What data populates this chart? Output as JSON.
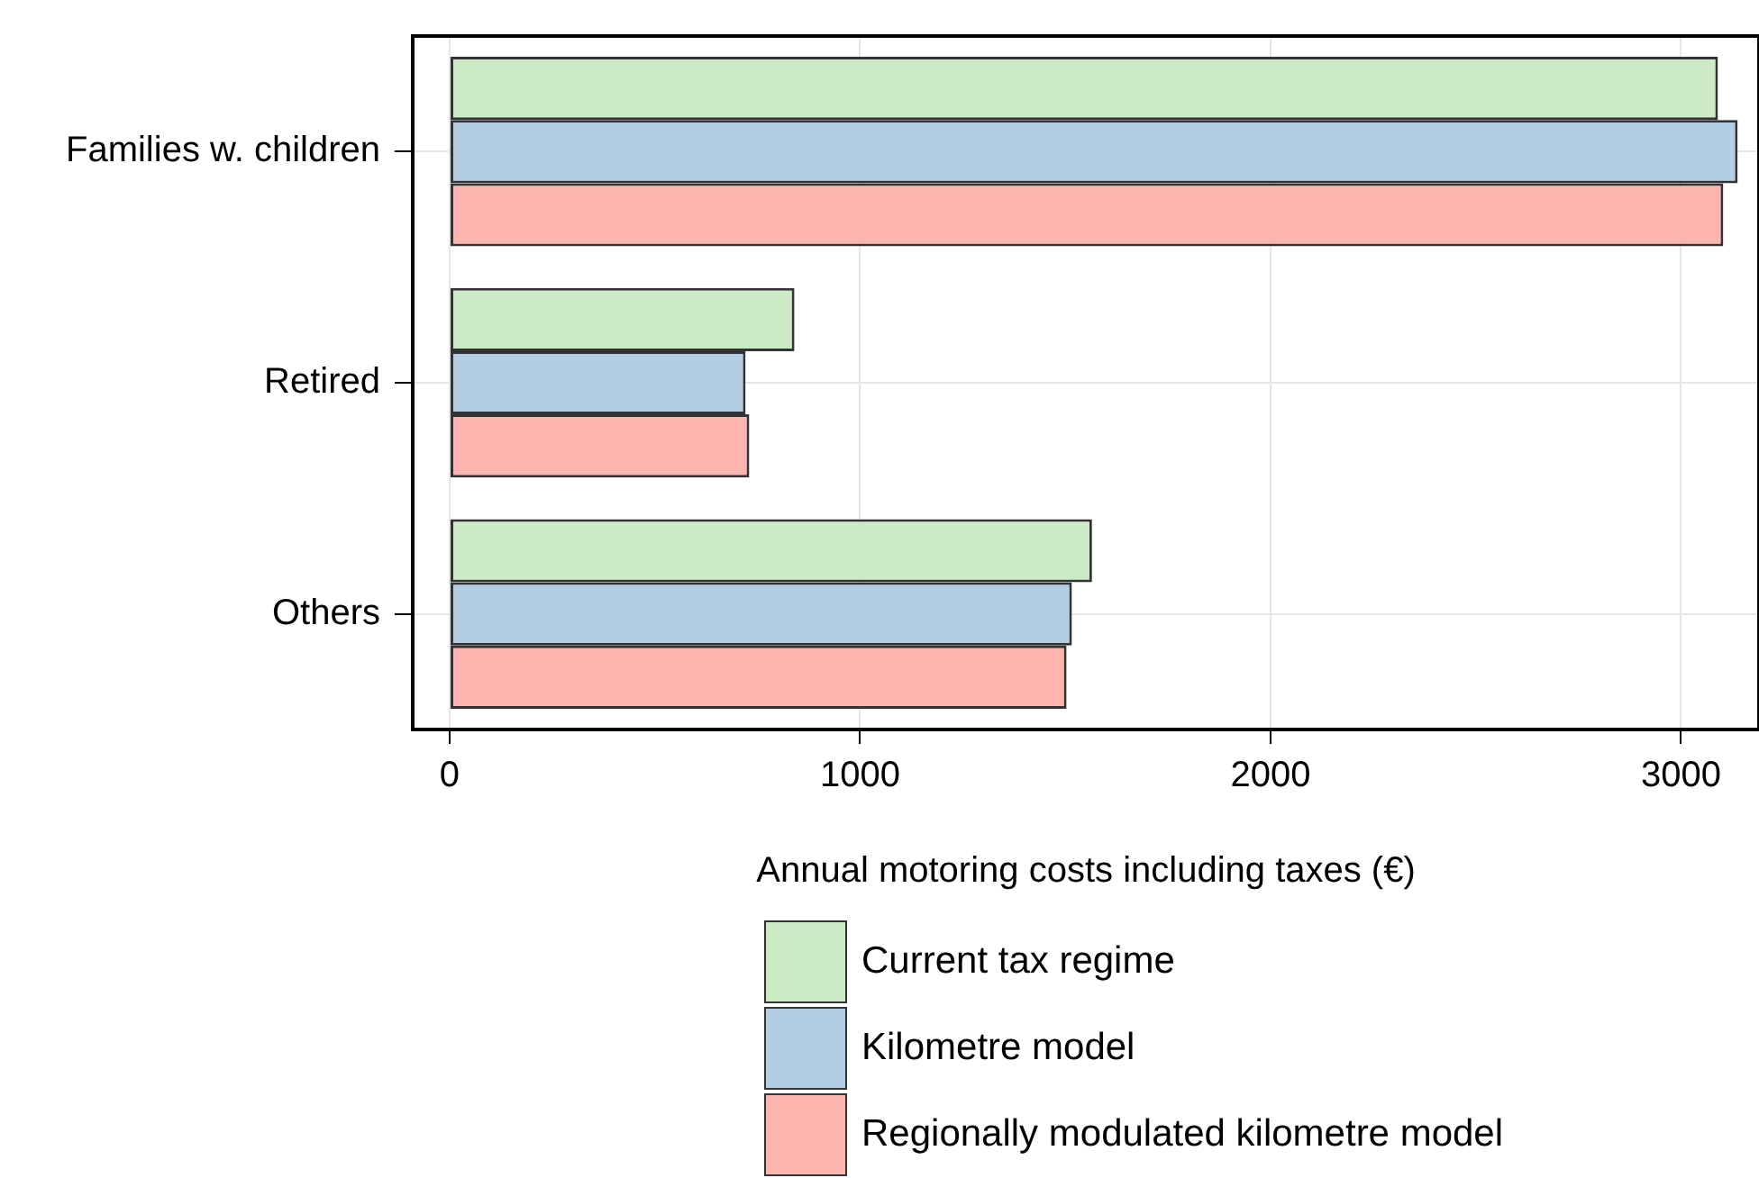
{
  "chart_data": {
    "type": "bar",
    "orientation": "horizontal",
    "xlabel": "Annual motoring costs including taxes (€)",
    "categories": [
      "Families w. children",
      "Retired",
      "Others"
    ],
    "series": [
      {
        "name": "Current tax regime",
        "color": "#ccebc5",
        "values": [
          3090,
          840,
          1565
        ]
      },
      {
        "name": "Kilometre model",
        "color": "#b3cde3",
        "values": [
          3138,
          721,
          1516
        ]
      },
      {
        "name": "Regionally modulated kilometre model",
        "color": "#fbb4ae",
        "values": [
          3103,
          730,
          1503
        ]
      }
    ],
    "xlim": [
      -90,
      3190
    ],
    "xticks": [
      0,
      1000,
      2000,
      3000
    ],
    "grid": true,
    "legend": "bottom"
  }
}
